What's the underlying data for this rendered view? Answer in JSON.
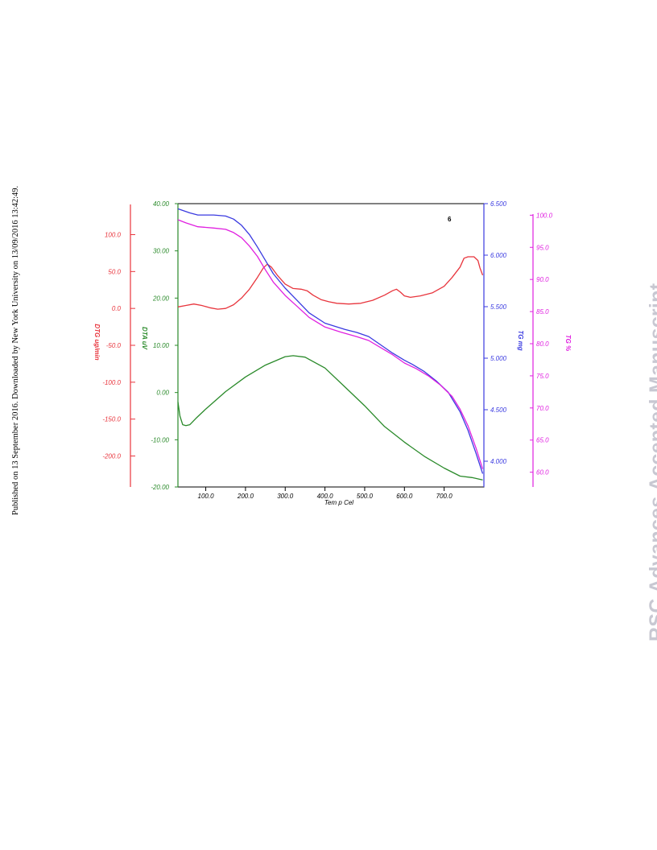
{
  "side_note": "Published on 13 September 2016. Downloaded by New York University on 13/09/2016 13:42:49.",
  "watermark": "RSC Advances Accepted Manuscript",
  "chart_data": {
    "type": "line",
    "annotation": "6",
    "x": {
      "label": "Tem p Cel",
      "range": [
        30,
        800
      ],
      "ticks": [
        100,
        200,
        300,
        400,
        500,
        600,
        700
      ],
      "tick_labels": [
        "100.0",
        "200.0",
        "300.0",
        "400.0",
        "500.0",
        "600.0",
        "700.0"
      ]
    },
    "axes": {
      "dtg": {
        "label": "DTG ug/min",
        "color": "#e8353d",
        "range": [
          -242,
          142
        ],
        "ticks": [
          100,
          50,
          0,
          -50,
          -100,
          -150,
          -200
        ],
        "tick_labels": [
          "100.0",
          "50.0",
          "0.0",
          "-50.0",
          "-100.0",
          "-150.0",
          "-200.0"
        ]
      },
      "dta": {
        "label": "DTA uV",
        "color": "#2a8a2a",
        "range": [
          -20,
          40
        ],
        "ticks": [
          40,
          30,
          20,
          10,
          0,
          -10,
          -20
        ],
        "tick_labels": [
          "40.00",
          "30.00",
          "20.00",
          "10.00",
          "0.00",
          "-10.00",
          "-20.00"
        ]
      },
      "tg_mg": {
        "label": "TG mg",
        "color": "#3a3ae0",
        "range": [
          3.75,
          6.5
        ],
        "ticks": [
          6.5,
          6.0,
          5.5,
          5.0,
          4.5,
          4.0
        ],
        "tick_labels": [
          "6.500",
          "6.000",
          "5.500",
          "5.000",
          "4.500",
          "4.000"
        ]
      },
      "tg_pct": {
        "label": "TG %",
        "color": "#e020e0",
        "range": [
          57.7,
          101.8
        ],
        "ticks": [
          100,
          95,
          90,
          85,
          80,
          75,
          70,
          65,
          60
        ],
        "tick_labels": [
          "100.0",
          "95.0",
          "90.0",
          "85.0",
          "80.0",
          "75.0",
          "70.0",
          "65.0",
          "60.0"
        ]
      }
    },
    "series": [
      {
        "axis": "dtg",
        "color": "#e8353d",
        "points": [
          [
            30,
            2
          ],
          [
            50,
            4
          ],
          [
            70,
            6
          ],
          [
            90,
            4
          ],
          [
            110,
            1
          ],
          [
            130,
            -1
          ],
          [
            150,
            0
          ],
          [
            170,
            5
          ],
          [
            190,
            14
          ],
          [
            210,
            26
          ],
          [
            230,
            42
          ],
          [
            245,
            55
          ],
          [
            255,
            60
          ],
          [
            265,
            56
          ],
          [
            280,
            45
          ],
          [
            300,
            33
          ],
          [
            320,
            27
          ],
          [
            340,
            26
          ],
          [
            355,
            24
          ],
          [
            370,
            18
          ],
          [
            390,
            12
          ],
          [
            410,
            9
          ],
          [
            430,
            7
          ],
          [
            460,
            6
          ],
          [
            490,
            7
          ],
          [
            520,
            11
          ],
          [
            550,
            18
          ],
          [
            570,
            24
          ],
          [
            580,
            26
          ],
          [
            590,
            22
          ],
          [
            600,
            17
          ],
          [
            615,
            15
          ],
          [
            640,
            17
          ],
          [
            670,
            21
          ],
          [
            700,
            30
          ],
          [
            720,
            42
          ],
          [
            740,
            56
          ],
          [
            750,
            68
          ],
          [
            760,
            70
          ],
          [
            775,
            70
          ],
          [
            785,
            65
          ],
          [
            790,
            55
          ],
          [
            797,
            45
          ]
        ]
      },
      {
        "axis": "dta",
        "color": "#2a8a2a",
        "points": [
          [
            30,
            -2
          ],
          [
            35,
            -5
          ],
          [
            42,
            -6.8
          ],
          [
            50,
            -7
          ],
          [
            60,
            -6.8
          ],
          [
            75,
            -5.5
          ],
          [
            100,
            -3.5
          ],
          [
            150,
            0.2
          ],
          [
            200,
            3.3
          ],
          [
            250,
            5.8
          ],
          [
            300,
            7.6
          ],
          [
            320,
            7.8
          ],
          [
            350,
            7.5
          ],
          [
            400,
            5.2
          ],
          [
            450,
            1.2
          ],
          [
            500,
            -2.8
          ],
          [
            550,
            -7.2
          ],
          [
            600,
            -10.5
          ],
          [
            650,
            -13.5
          ],
          [
            700,
            -16
          ],
          [
            740,
            -17.7
          ],
          [
            770,
            -18
          ],
          [
            797,
            -18.5
          ]
        ]
      },
      {
        "axis": "tg_mg",
        "color": "#3a3ae0",
        "points": [
          [
            30,
            6.45
          ],
          [
            60,
            6.41
          ],
          [
            80,
            6.39
          ],
          [
            120,
            6.39
          ],
          [
            150,
            6.38
          ],
          [
            170,
            6.35
          ],
          [
            190,
            6.29
          ],
          [
            210,
            6.2
          ],
          [
            230,
            6.08
          ],
          [
            250,
            5.95
          ],
          [
            270,
            5.82
          ],
          [
            300,
            5.68
          ],
          [
            330,
            5.56
          ],
          [
            360,
            5.44
          ],
          [
            400,
            5.34
          ],
          [
            450,
            5.28
          ],
          [
            480,
            5.25
          ],
          [
            510,
            5.21
          ],
          [
            540,
            5.13
          ],
          [
            570,
            5.05
          ],
          [
            600,
            4.98
          ],
          [
            620,
            4.94
          ],
          [
            650,
            4.87
          ],
          [
            680,
            4.78
          ],
          [
            710,
            4.67
          ],
          [
            740,
            4.48
          ],
          [
            760,
            4.3
          ],
          [
            780,
            4.08
          ],
          [
            797,
            3.88
          ]
        ]
      },
      {
        "axis": "tg_pct",
        "color": "#e020e0",
        "points": [
          [
            30,
            99.3
          ],
          [
            50,
            98.8
          ],
          [
            80,
            98.2
          ],
          [
            120,
            98.0
          ],
          [
            150,
            97.8
          ],
          [
            170,
            97.3
          ],
          [
            190,
            96.5
          ],
          [
            210,
            95.2
          ],
          [
            230,
            93.6
          ],
          [
            250,
            91.5
          ],
          [
            270,
            89.6
          ],
          [
            300,
            87.5
          ],
          [
            330,
            85.8
          ],
          [
            360,
            84.1
          ],
          [
            400,
            82.6
          ],
          [
            440,
            81.8
          ],
          [
            480,
            81.1
          ],
          [
            510,
            80.5
          ],
          [
            540,
            79.4
          ],
          [
            570,
            78.3
          ],
          [
            600,
            77.0
          ],
          [
            630,
            76.1
          ],
          [
            660,
            75.0
          ],
          [
            690,
            73.6
          ],
          [
            720,
            71.8
          ],
          [
            740,
            69.8
          ],
          [
            760,
            67.2
          ],
          [
            780,
            63.8
          ],
          [
            797,
            60.5
          ]
        ]
      }
    ]
  }
}
